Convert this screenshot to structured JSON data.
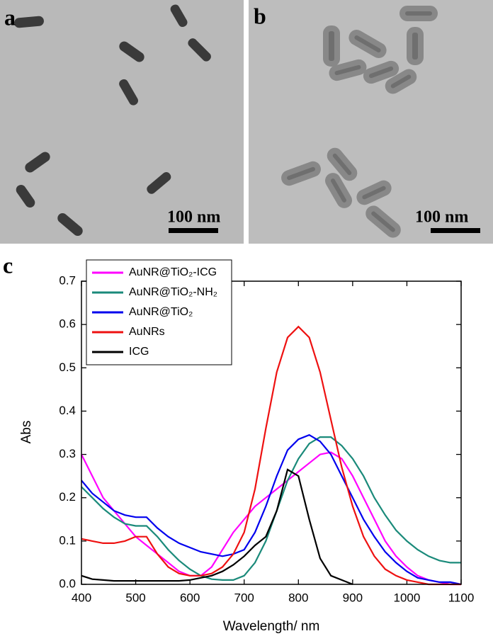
{
  "panels": [
    {
      "label": "a",
      "scale_bar": "100 nm"
    },
    {
      "label": "b",
      "scale_bar": "100 nm"
    },
    {
      "label": "c"
    }
  ],
  "chart_data": {
    "type": "line",
    "xlabel": "Wavelength/ nm",
    "ylabel": "Abs",
    "x": [
      400,
      420,
      440,
      460,
      480,
      500,
      520,
      540,
      560,
      580,
      600,
      620,
      640,
      660,
      680,
      700,
      720,
      740,
      760,
      780,
      800,
      820,
      840,
      860,
      880,
      900,
      920,
      940,
      960,
      980,
      1000,
      1020,
      1040,
      1060,
      1080,
      1100
    ],
    "series": [
      {
        "name": "AuNR@TiO₂-ICG",
        "color": "#ff00ff",
        "values": [
          0.3,
          0.25,
          0.2,
          0.17,
          0.14,
          0.11,
          0.09,
          0.07,
          0.05,
          0.03,
          0.02,
          0.02,
          0.04,
          0.08,
          0.12,
          0.15,
          0.18,
          0.2,
          0.22,
          0.24,
          0.26,
          0.28,
          0.3,
          0.305,
          0.29,
          0.25,
          0.2,
          0.15,
          0.1,
          0.065,
          0.04,
          0.02,
          0.01,
          0.005,
          0,
          0
        ]
      },
      {
        "name": "AuNR@TiO₂-NH₂",
        "color": "#1a8a7a",
        "values": [
          0.225,
          0.2,
          0.175,
          0.155,
          0.14,
          0.135,
          0.135,
          0.11,
          0.08,
          0.055,
          0.035,
          0.02,
          0.012,
          0.01,
          0.01,
          0.02,
          0.05,
          0.1,
          0.17,
          0.24,
          0.29,
          0.325,
          0.34,
          0.34,
          0.32,
          0.29,
          0.25,
          0.2,
          0.16,
          0.125,
          0.1,
          0.08,
          0.065,
          0.055,
          0.05,
          0.05
        ]
      },
      {
        "name": "AuNR@TiO₂",
        "color": "#0000ee",
        "values": [
          0.24,
          0.21,
          0.19,
          0.17,
          0.16,
          0.155,
          0.155,
          0.13,
          0.11,
          0.095,
          0.085,
          0.075,
          0.07,
          0.065,
          0.07,
          0.08,
          0.12,
          0.18,
          0.25,
          0.31,
          0.335,
          0.345,
          0.33,
          0.3,
          0.25,
          0.2,
          0.15,
          0.11,
          0.075,
          0.05,
          0.03,
          0.015,
          0.01,
          0.005,
          0.005,
          0
        ]
      },
      {
        "name": "AuNRs",
        "color": "#ee1111",
        "values": [
          0.105,
          0.1,
          0.095,
          0.095,
          0.1,
          0.11,
          0.11,
          0.07,
          0.04,
          0.025,
          0.02,
          0.02,
          0.025,
          0.04,
          0.07,
          0.12,
          0.22,
          0.36,
          0.49,
          0.57,
          0.595,
          0.57,
          0.49,
          0.38,
          0.27,
          0.18,
          0.11,
          0.065,
          0.035,
          0.02,
          0.01,
          0.005,
          0,
          0,
          0,
          0
        ]
      },
      {
        "name": "ICG",
        "color": "#000000",
        "values": [
          0.02,
          0.012,
          0.01,
          0.008,
          0.008,
          0.008,
          0.008,
          0.008,
          0.008,
          0.008,
          0.01,
          0.015,
          0.02,
          0.03,
          0.045,
          0.065,
          0.09,
          0.11,
          0.17,
          0.265,
          0.25,
          0.15,
          0.06,
          0.02,
          0.01,
          0,
          null,
          null,
          null,
          null,
          null,
          null,
          null,
          null,
          null,
          null
        ]
      }
    ],
    "xlim": [
      400,
      1100
    ],
    "ylim": [
      0,
      0.7
    ],
    "xticks": [
      400,
      500,
      600,
      700,
      800,
      900,
      1000,
      1100
    ],
    "yticks": [
      {
        "value": 0,
        "label": "0.0"
      },
      0.1,
      0.2,
      0.3,
      0.4,
      0.5,
      0.6,
      0.7
    ],
    "legend": "upper left"
  }
}
